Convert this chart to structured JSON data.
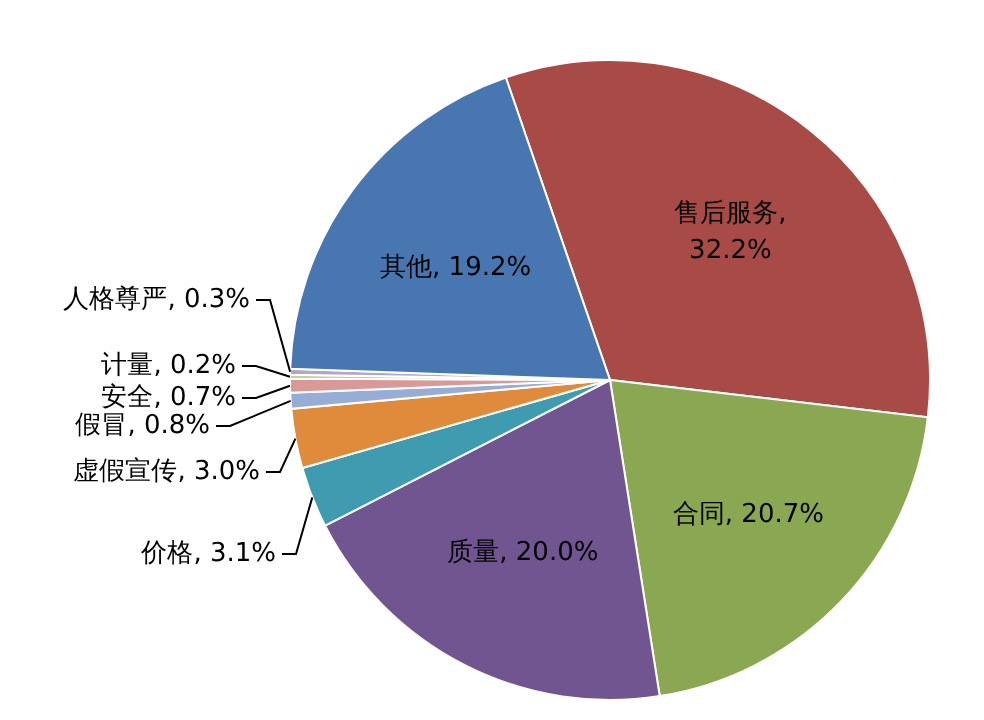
{
  "chart_data": {
    "type": "pie",
    "categories": [
      "售后服务",
      "合同",
      "质量",
      "价格",
      "虚假宣传",
      "假冒",
      "安全",
      "计量",
      "人格尊严",
      "其他"
    ],
    "values": [
      32.2,
      20.7,
      20.0,
      3.1,
      3.0,
      0.8,
      0.7,
      0.2,
      0.3,
      19.2
    ],
    "colors": [
      "#a84a46",
      "#8aa851",
      "#715590",
      "#3f9bb0",
      "#e08a3c",
      "#96aed6",
      "#d99a97",
      "#c0d39a",
      "#b3a6c8",
      "#4876b0"
    ],
    "value_labels": [
      ",\n32.2%",
      ", 20.7%",
      ", 20.0%",
      ", 3.1%",
      ", 3.0%",
      ", 0.8%",
      ", 0.7%",
      ", 0.2%",
      ", 0.3%",
      ", 19.2%"
    ],
    "legend": false
  }
}
